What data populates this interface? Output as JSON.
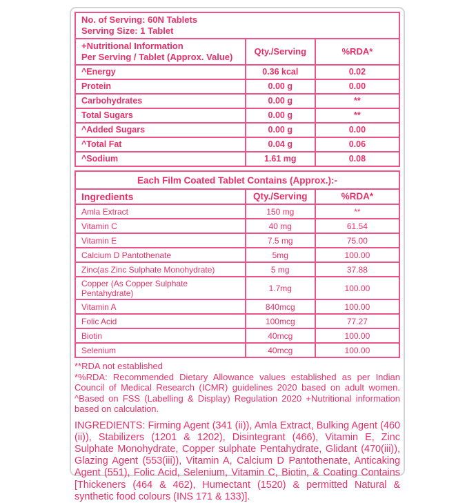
{
  "colors": {
    "accent_text": "#e73069",
    "table_border": "#ee5388",
    "outer_border": "#d1d3d6",
    "background": "#ffffff"
  },
  "serving": {
    "line1": "No. of Serving: 60N Tablets",
    "line2": "Serving Size: 1 Tablet"
  },
  "nutrition_table": {
    "header": {
      "name_line1": "+Nutritional Information",
      "name_line2": "Per Serving / Tablet (Approx. Value)",
      "qty": "Qty./Serving",
      "rda": "%RDA*"
    },
    "rows": [
      {
        "name": "^Energy",
        "qty": "0.36 kcal",
        "rda": "0.02"
      },
      {
        "name": "Protein",
        "qty": "0.00 g",
        "rda": "0.00"
      },
      {
        "name": "Carbohydrates",
        "qty": "0.00 g",
        "rda": "**"
      },
      {
        "name": "Total Sugars",
        "qty": "0.00 g",
        "rda": "**"
      },
      {
        "name": "^Added Sugars",
        "qty": "0.00 g",
        "rda": "0.00"
      },
      {
        "name": "^Total Fat",
        "qty": "0.04 g",
        "rda": "0.06"
      },
      {
        "name": "^Sodium",
        "qty": "1.61 mg",
        "rda": "0.08"
      }
    ]
  },
  "contents_table": {
    "band_title": "Each Film Coated Tablet Contains (Approx.):-",
    "header": {
      "name": "Ingredients",
      "qty": "Qty./Serving",
      "rda": "%RDA*"
    },
    "rows": [
      {
        "name": "Amla Extract",
        "qty": "150 mg",
        "rda": "**"
      },
      {
        "name": "Vitamin C",
        "qty": "40 mg",
        "rda": "61.54"
      },
      {
        "name": "Vitamin E",
        "qty": "7.5 mg",
        "rda": "75.00"
      },
      {
        "name": "Calcium D Pantothenate",
        "qty": "5mg",
        "rda": "100.00"
      },
      {
        "name": "Zinc(as Zinc Sulphate Monohydrate)",
        "qty": "5 mg",
        "rda": "37.88"
      },
      {
        "name": "Copper (As Copper Sulphate Pentahydrate)",
        "qty": "1.7mg",
        "rda": "100.00"
      },
      {
        "name": "Vitamin A",
        "qty": "840mcg",
        "rda": "100.00"
      },
      {
        "name": "Folic Acid",
        "qty": "100mcg",
        "rda": "77.27"
      },
      {
        "name": "Biotin",
        "qty": "40mcg",
        "rda": "100.00"
      },
      {
        "name": "Selenium",
        "qty": "40mcg",
        "rda": "100.00"
      }
    ]
  },
  "footnotes": {
    "rda_note": "**RDA not established",
    "rda_paragraph": "*%RDA: Recommended Dietary Allowance values established as per Indian Council of Medical Research (ICMR) guidelines  2020 based on adult women. ^Based on FSS (Labelling & Display) Regulation 2020 +Nutritional information based on calculation."
  },
  "ingredients_text": "INGREDIENTS: Firming Agent (341 (ii)), Amla Extract, Bulking Agent (460 (ii)), Stabilizers (1201 & 1202), Disintegrant (466), Vitamin E, Zinc Sulphate Monohydrate, Copper sulphate Pentahydrate, Glidant (470(iii)), Glazing Agent (553(iii)), Vitamin A, Calcium D Pantothenate, Anticaking Agent (551), Folic Acid, Selenium, Vitamin C, Biotin, & Coating Contains [Thickeners (464 & 462), Humectant (1520) & permitted Natural & synthetic food colours (INS 171 & 133)]."
}
